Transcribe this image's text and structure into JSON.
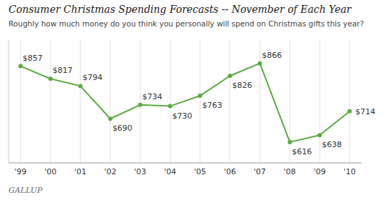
{
  "chart_data": {
    "type": "line",
    "title": "Consumer Christmas Spending Forecasts -- November of Each Year",
    "subtitle": "Roughly how much money do you think you personally will spend on Christmas gifts this year?",
    "annotations": [
      "GALLUP"
    ],
    "categories": [
      "'99",
      "'00",
      "'01",
      "'02",
      "'03",
      "'04",
      "'05",
      "'06",
      "'07",
      "'08",
      "'09",
      "'10"
    ],
    "values": [
      857,
      817,
      794,
      690,
      734,
      730,
      763,
      826,
      866,
      616,
      638,
      714
    ],
    "value_labels": [
      "$857",
      "$817",
      "$794",
      "$690",
      "$734",
      "$730",
      "$763",
      "$826",
      "$866",
      "$616",
      "$638",
      "$714"
    ],
    "color": "#5aab3f",
    "marker": "circle",
    "line_style": "solid",
    "ylim": [
      550,
      940
    ],
    "grid": true,
    "data_labels": true,
    "tick_labels": "x"
  }
}
